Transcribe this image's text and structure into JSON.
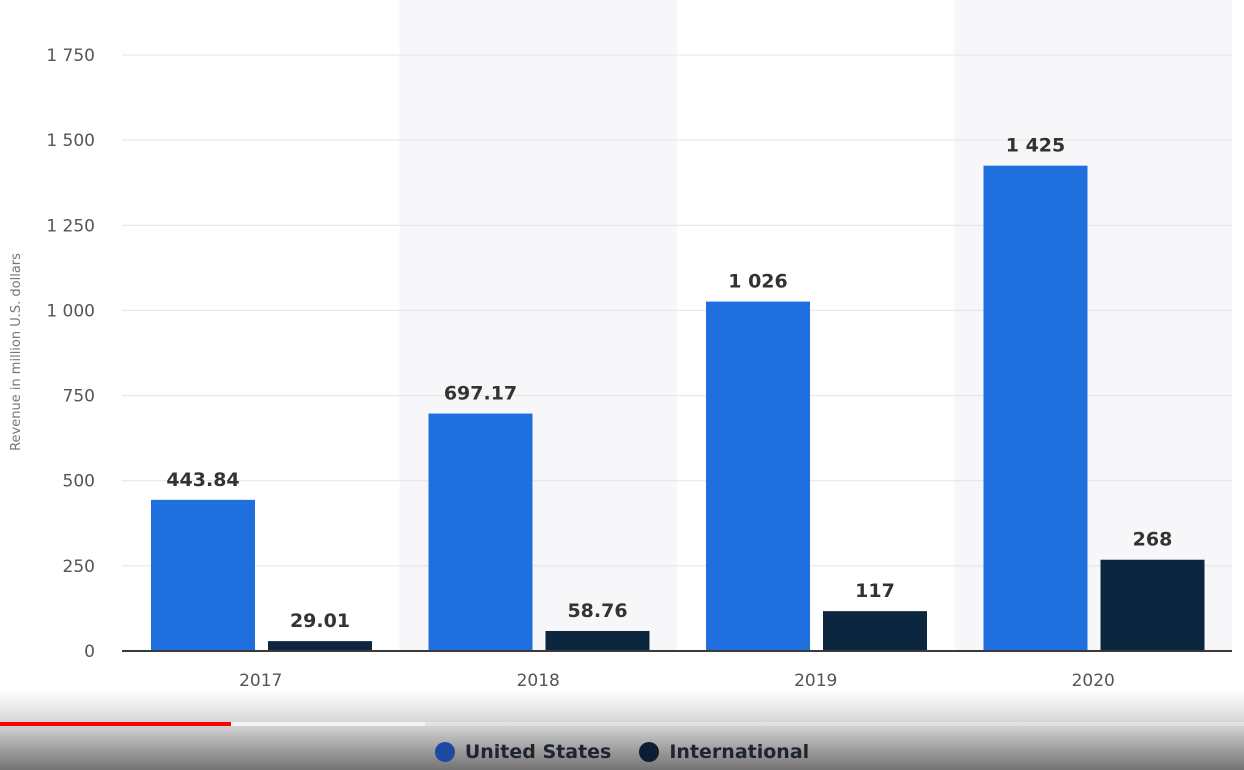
{
  "chart_data": {
    "type": "bar",
    "categories": [
      "2017",
      "2018",
      "2019",
      "2020"
    ],
    "series": [
      {
        "name": "United States",
        "values": [
          443.84,
          697.17,
          1026,
          1425
        ],
        "labels": [
          "443.84",
          "697.17",
          "1 026",
          "1 425"
        ],
        "color": "#1f6fdf"
      },
      {
        "name": "International",
        "values": [
          29.01,
          58.76,
          117,
          268
        ],
        "labels": [
          "29.01",
          "58.76",
          "117",
          "268"
        ],
        "color": "#0d2640"
      }
    ],
    "ylabel": "Revenue in million U.S. dollars",
    "ylim": [
      0,
      1750
    ],
    "yticks": [
      0,
      250,
      500,
      750,
      1000,
      1250,
      1500,
      1750
    ],
    "ytick_labels": [
      "0",
      "250",
      "500",
      "750",
      "1 000",
      "1 250",
      "1 500",
      "1 750"
    ],
    "grid": true,
    "legend_position": "bottom-center"
  },
  "player": {
    "progress_fraction": 0.186,
    "buffer_fraction": 0.342
  }
}
